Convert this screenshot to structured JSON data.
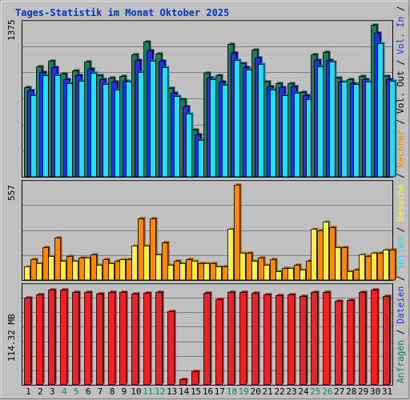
{
  "title": "Tages-Statistik im Monat Oktober 2025",
  "colors": {
    "anfragen": "#1a7f5a",
    "dateien": "#2233dd",
    "seiten": "#22ddff",
    "besuche": "#ffee44",
    "rechner": "#ff8800",
    "volumen": "#ee2222",
    "background": "#c0c0c0",
    "weekend_day": "#1a7f5a"
  },
  "chart_data": [
    {
      "type": "bar",
      "name": "hits-chart",
      "ymax_label": "1375",
      "ylim": [
        0,
        1375
      ],
      "categories": [
        "1",
        "2",
        "3",
        "4",
        "5",
        "6",
        "7",
        "8",
        "9",
        "10",
        "11",
        "12",
        "13",
        "14",
        "15",
        "16",
        "17",
        "18",
        "19",
        "20",
        "21",
        "22",
        "23",
        "24",
        "25",
        "26",
        "27",
        "28",
        "29",
        "30",
        "31"
      ],
      "series": [
        {
          "name": "Anfragen",
          "color_key": "anfragen",
          "values": [
            810,
            1000,
            1050,
            930,
            960,
            1040,
            920,
            900,
            910,
            1110,
            1225,
            1115,
            800,
            700,
            430,
            940,
            920,
            1200,
            1030,
            1150,
            860,
            850,
            850,
            770,
            1110,
            1130,
            900,
            880,
            910,
            1375,
            910
          ]
        },
        {
          "name": "Dateien",
          "color_key": "dateien",
          "values": [
            780,
            950,
            990,
            880,
            920,
            980,
            880,
            860,
            870,
            1060,
            1140,
            1050,
            760,
            640,
            380,
            900,
            860,
            1120,
            990,
            1080,
            820,
            810,
            820,
            740,
            1060,
            1060,
            860,
            850,
            880,
            1300,
            880
          ]
        },
        {
          "name": "Seiten",
          "color_key": "seiten",
          "values": [
            740,
            920,
            920,
            850,
            870,
            940,
            840,
            790,
            860,
            950,
            1050,
            990,
            730,
            570,
            330,
            880,
            830,
            1060,
            970,
            1020,
            790,
            740,
            760,
            700,
            1000,
            1040,
            860,
            840,
            860,
            1210,
            870
          ]
        }
      ]
    },
    {
      "type": "bar",
      "name": "visits-chart",
      "ymax_label": "557",
      "ylim": [
        0,
        557
      ],
      "categories": [
        "1",
        "2",
        "3",
        "4",
        "5",
        "6",
        "7",
        "8",
        "9",
        "10",
        "11",
        "12",
        "13",
        "14",
        "15",
        "16",
        "17",
        "18",
        "19",
        "20",
        "21",
        "22",
        "23",
        "24",
        "25",
        "26",
        "27",
        "28",
        "29",
        "30",
        "31"
      ],
      "series": [
        {
          "name": "Besuche",
          "color_key": "besuche",
          "values": [
            80,
            100,
            140,
            110,
            110,
            130,
            90,
            100,
            120,
            200,
            200,
            150,
            90,
            100,
            110,
            100,
            80,
            300,
            160,
            110,
            90,
            50,
            70,
            60,
            300,
            340,
            190,
            50,
            150,
            160,
            180
          ]
        },
        {
          "name": "Rechner",
          "color_key": "rechner",
          "values": [
            120,
            190,
            250,
            140,
            130,
            150,
            120,
            110,
            120,
            360,
            360,
            220,
            110,
            120,
            100,
            100,
            80,
            557,
            160,
            130,
            120,
            70,
            90,
            110,
            290,
            310,
            190,
            60,
            140,
            160,
            180
          ]
        }
      ]
    },
    {
      "type": "bar",
      "name": "volume-chart",
      "ymax_label": "114.32 MB",
      "ylim": [
        0,
        114.32
      ],
      "categories": [
        "1",
        "2",
        "3",
        "4",
        "5",
        "6",
        "7",
        "8",
        "9",
        "10",
        "11",
        "12",
        "13",
        "14",
        "15",
        "16",
        "17",
        "18",
        "19",
        "20",
        "21",
        "22",
        "23",
        "24",
        "25",
        "26",
        "27",
        "28",
        "29",
        "30",
        "31"
      ],
      "series": [
        {
          "name": "Volumen",
          "color_key": "volumen",
          "values": [
            103,
            107,
            112,
            112,
            110,
            110,
            108,
            110,
            110,
            108,
            109,
            110,
            87,
            7,
            16,
            109,
            101,
            110,
            110,
            109,
            107,
            106,
            107,
            105,
            110,
            110,
            99,
            100,
            110,
            112,
            105
          ]
        }
      ]
    }
  ],
  "x_labels": [
    "1",
    "2",
    "3",
    "4",
    "5",
    "6",
    "7",
    "8",
    "9",
    "10",
    "11",
    "12",
    "13",
    "14",
    "15",
    "16",
    "17",
    "18",
    "19",
    "20",
    "21",
    "22",
    "23",
    "24",
    "25",
    "26",
    "27",
    "28",
    "29",
    "30",
    "31"
  ],
  "weekend_days": [
    "4",
    "5",
    "11",
    "12",
    "18",
    "19",
    "25",
    "26"
  ],
  "right_legend": [
    {
      "text": "Anfragen",
      "color_key": "anfragen"
    },
    {
      "text": " / ",
      "color_key": "black"
    },
    {
      "text": "Dateien",
      "color_key": "dateien"
    },
    {
      "text": " / ",
      "color_key": "black"
    },
    {
      "text": "Seiten",
      "color_key": "seiten"
    },
    {
      "text": " / ",
      "color_key": "black"
    },
    {
      "text": "Besuche",
      "color_key": "besuche"
    },
    {
      "text": " / ",
      "color_key": "black"
    },
    {
      "text": "Rechner",
      "color_key": "rechner"
    },
    {
      "text": " / ",
      "color_key": "black"
    },
    {
      "text": "Vol. Out",
      "color_key": "black"
    },
    {
      "text": " / ",
      "color_key": "black"
    },
    {
      "text": "Vol. In",
      "color_key": "dateien"
    },
    {
      "text": " / ",
      "color_key": "black"
    },
    {
      "text": "Volumen",
      "color_key": "volumen"
    }
  ]
}
